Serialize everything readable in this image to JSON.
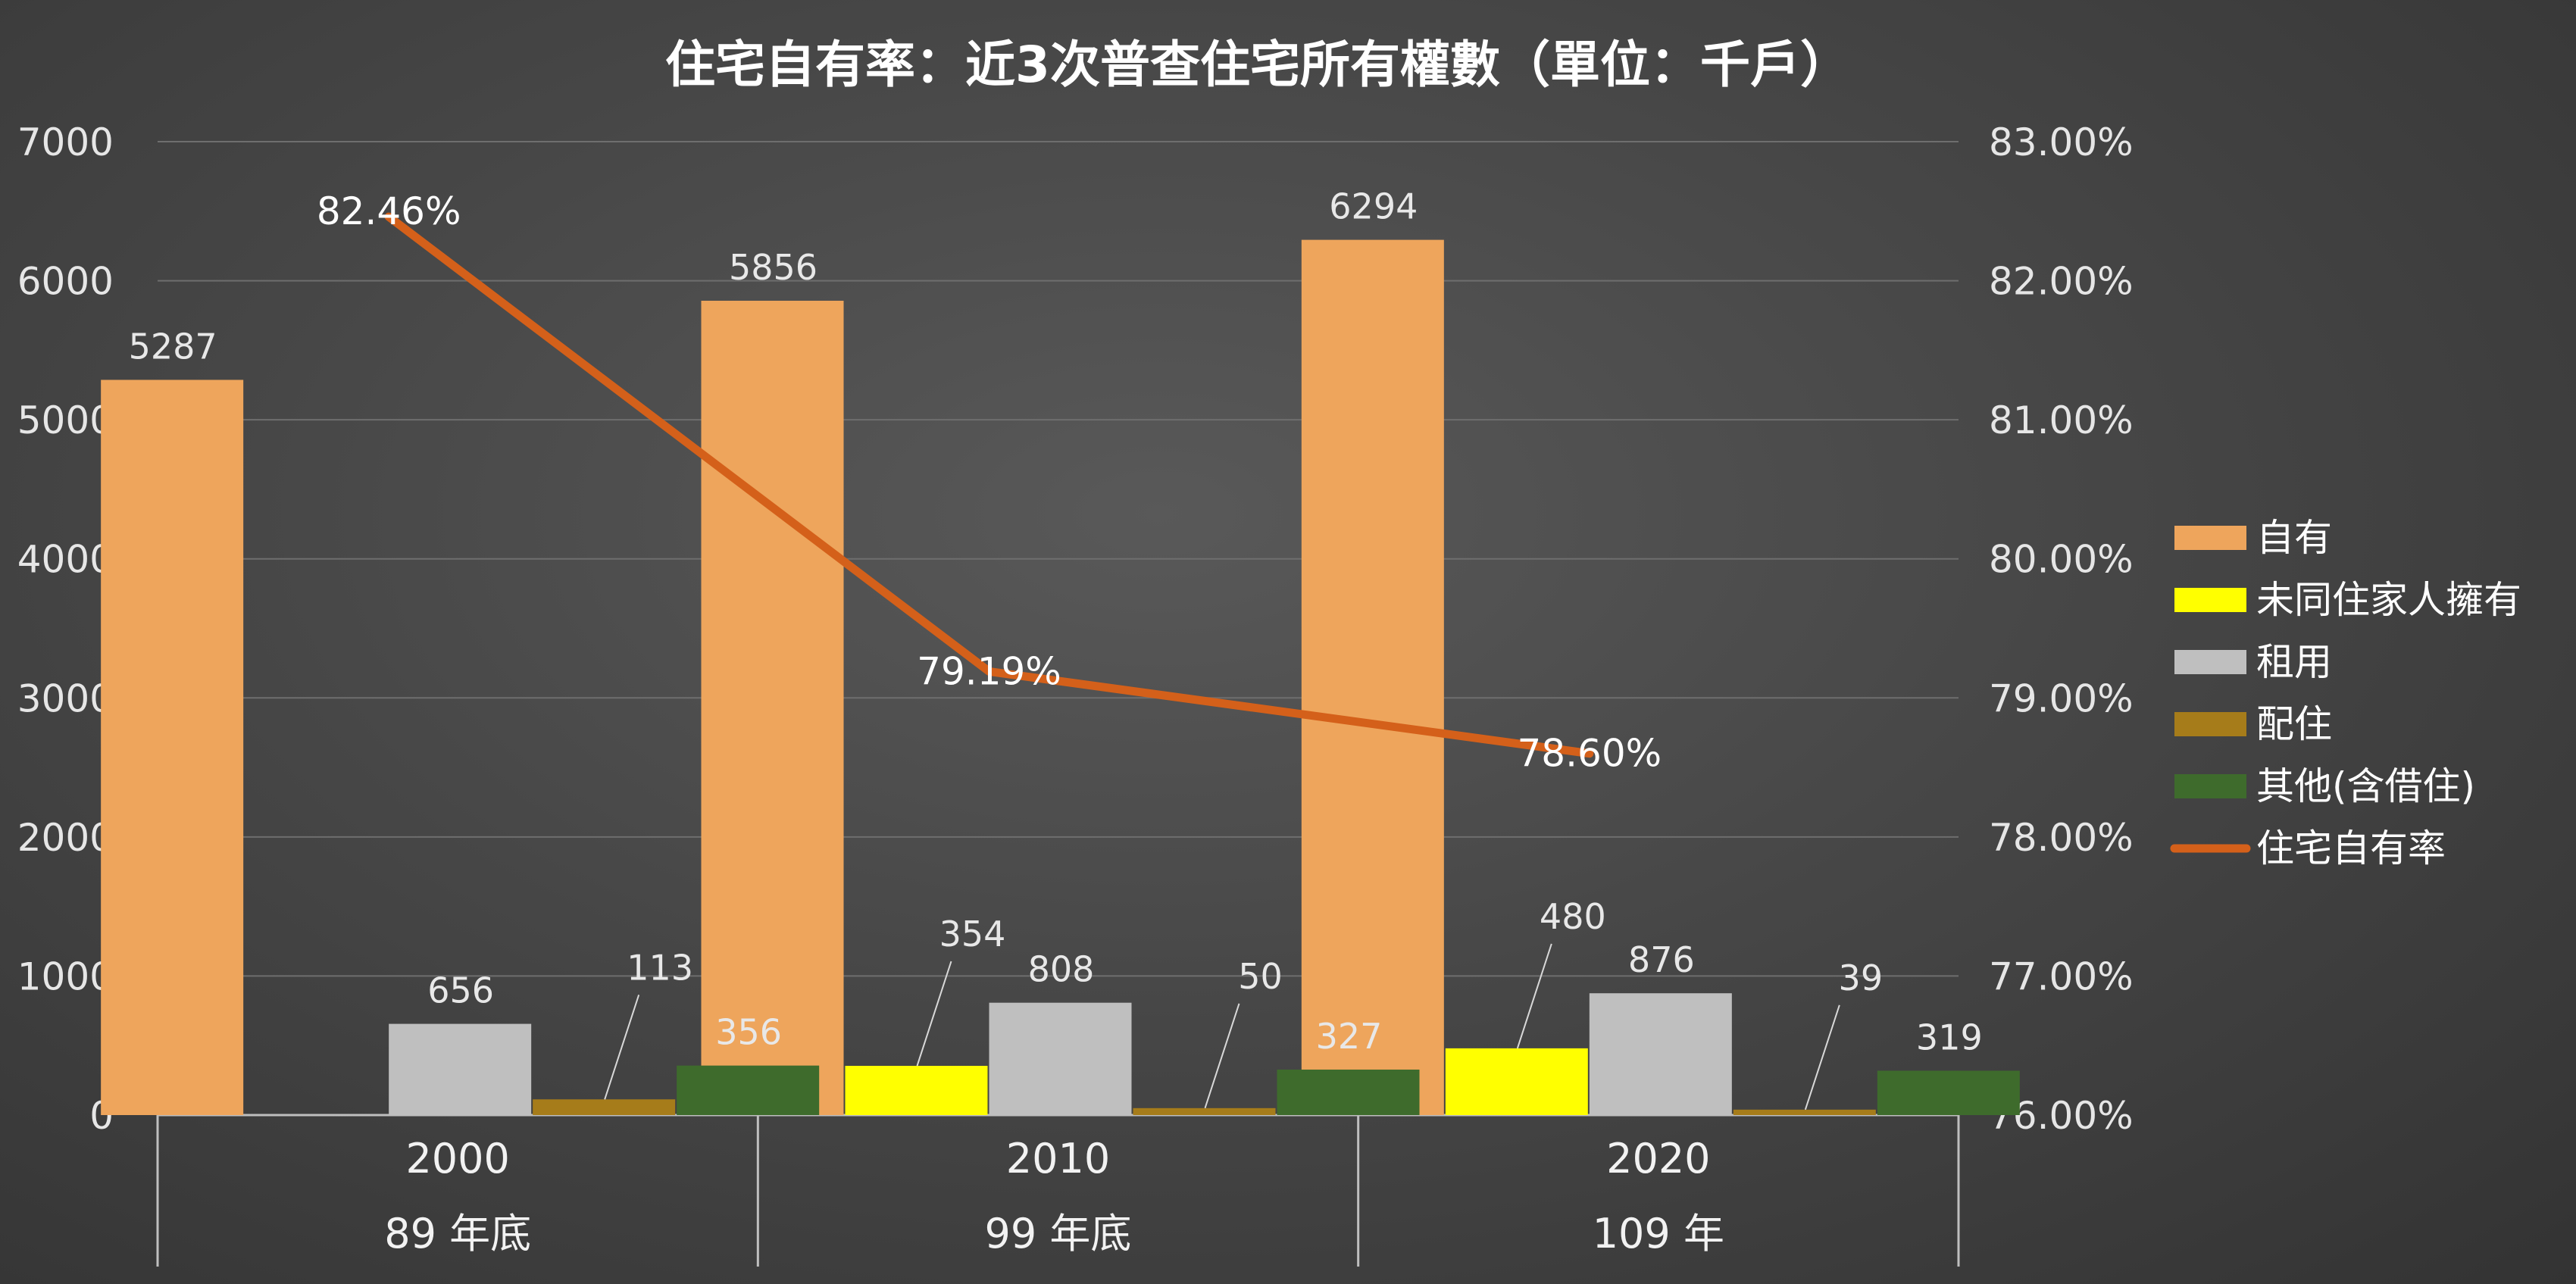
{
  "chart_data": {
    "type": "bar",
    "title": "住宅自有率：近3次普查住宅所有權數（單位：千戶）",
    "categories": [
      "2000",
      "2010",
      "2020"
    ],
    "sub_categories": [
      "89 年底",
      "99 年底",
      "109 年"
    ],
    "series": [
      {
        "name": "自有",
        "type": "bar",
        "axis": "left",
        "color": "#eea55c",
        "values": [
          5287,
          5856,
          6294
        ]
      },
      {
        "name": "未同住家人擁有",
        "type": "bar",
        "axis": "left",
        "color": "#ffff00",
        "values": [
          null,
          354,
          480
        ]
      },
      {
        "name": "租用",
        "type": "bar",
        "axis": "left",
        "color": "#bfbfbf",
        "values": [
          656,
          808,
          876
        ]
      },
      {
        "name": "配住",
        "type": "bar",
        "axis": "left",
        "color": "#a67c1a",
        "values": [
          113,
          50,
          39
        ]
      },
      {
        "name": "其他(含借住)",
        "type": "bar",
        "axis": "left",
        "color": "#3e6b2c",
        "values": [
          356,
          327,
          319
        ]
      },
      {
        "name": "住宅自有率",
        "type": "line",
        "axis": "right",
        "color": "#d4601a",
        "values": [
          82.46,
          79.19,
          78.6
        ],
        "labels": [
          "82.46%",
          "79.19%",
          "78.60%"
        ]
      }
    ],
    "y_left": {
      "min": 0,
      "max": 7000,
      "ticks": [
        "0",
        "1000",
        "2000",
        "3000",
        "4000",
        "5000",
        "6000",
        "7000"
      ]
    },
    "y_right": {
      "min": 76,
      "max": 83,
      "ticks": [
        "76.00%",
        "77.00%",
        "78.00%",
        "79.00%",
        "80.00%",
        "81.00%",
        "82.00%",
        "83.00%"
      ]
    },
    "grid": true,
    "legend_position": "right"
  }
}
